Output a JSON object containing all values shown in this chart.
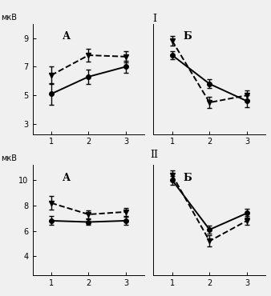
{
  "title_I": "I",
  "title_II": "II",
  "ylabel": "мкВ",
  "xticks": [
    1,
    2,
    3
  ],
  "IA_solid": [
    5.1,
    6.3,
    7.0
  ],
  "IA_solid_err": [
    0.75,
    0.5,
    0.4
  ],
  "IA_dashed": [
    6.4,
    7.8,
    7.7
  ],
  "IA_dashed_err": [
    0.6,
    0.45,
    0.4
  ],
  "IA_ylim": [
    2.3,
    10.0
  ],
  "IA_yticks": [
    3,
    5,
    7,
    9
  ],
  "IA_label": "А",
  "IB_solid": [
    7.8,
    5.8,
    4.6
  ],
  "IB_solid_err": [
    0.3,
    0.3,
    0.4
  ],
  "IB_dashed": [
    8.8,
    4.5,
    5.0
  ],
  "IB_dashed_err": [
    0.35,
    0.4,
    0.35
  ],
  "IB_ylim": [
    2.3,
    10.0
  ],
  "IB_yticks": [
    3,
    5,
    7,
    9
  ],
  "IB_label": "Б",
  "IIA_solid": [
    6.8,
    6.7,
    6.8
  ],
  "IIA_solid_err": [
    0.35,
    0.25,
    0.3
  ],
  "IIA_dashed": [
    8.2,
    7.3,
    7.5
  ],
  "IIA_dashed_err": [
    0.55,
    0.3,
    0.3
  ],
  "IIA_ylim": [
    2.5,
    11.2
  ],
  "IIA_yticks": [
    4,
    6,
    8,
    10
  ],
  "IIA_label": "А",
  "IIB_solid": [
    10.0,
    6.1,
    7.4
  ],
  "IIB_solid_err": [
    0.35,
    0.3,
    0.35
  ],
  "IIB_dashed": [
    10.4,
    5.2,
    6.8
  ],
  "IIB_dashed_err": [
    0.4,
    0.45,
    0.35
  ],
  "IIB_ylim": [
    2.5,
    11.2
  ],
  "IIB_yticks": [
    4,
    6,
    8,
    10
  ],
  "IIB_label": "Б",
  "line_color": "#000000",
  "marker_solid": "o",
  "marker_dashed": "v",
  "linewidth": 1.4,
  "markersize": 4,
  "capsize": 2.5,
  "elinewidth": 1.0,
  "bg_color": "#f0f0f0"
}
